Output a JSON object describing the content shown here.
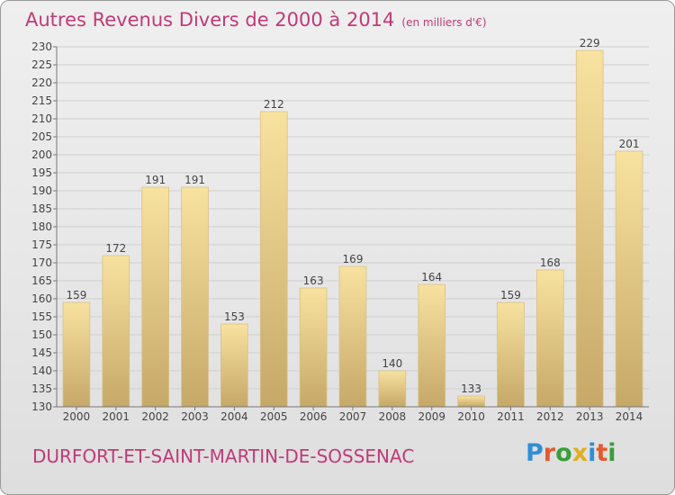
{
  "header": {
    "title": "Autres Revenus Divers de 2000 à 2014",
    "unit": "(en milliers d'€)"
  },
  "footer": {
    "commune": "DURFORT-ET-SAINT-MARTIN-DE-SOSSENAC",
    "logo": {
      "letters": [
        "P",
        "r",
        "o",
        "x",
        "i",
        "t",
        "i"
      ],
      "colors": [
        "#2f8fd6",
        "#e45a2e",
        "#3a9e3a",
        "#e0b022",
        "#2f8fd6",
        "#e45a2e",
        "#3a9e3a"
      ]
    }
  },
  "colors": {
    "accent": "#c03a78",
    "bar_light": "#f8e2a0",
    "bar_dark": "#c6a868",
    "grid": "#cfcfcf"
  },
  "chart_data": {
    "type": "bar",
    "title": "Autres Revenus Divers de 2000 à 2014",
    "subtitle": "(en milliers d'€)",
    "xlabel": "",
    "ylabel": "",
    "categories": [
      "2000",
      "2001",
      "2002",
      "2003",
      "2004",
      "2005",
      "2006",
      "2007",
      "2008",
      "2009",
      "2010",
      "2011",
      "2012",
      "2013",
      "2014"
    ],
    "values": [
      159,
      172,
      191,
      191,
      153,
      212,
      163,
      169,
      140,
      164,
      133,
      159,
      168,
      229,
      201
    ],
    "ylim": [
      130,
      230
    ],
    "yticks": [
      130,
      135,
      140,
      145,
      150,
      155,
      160,
      165,
      170,
      175,
      180,
      185,
      190,
      195,
      200,
      205,
      210,
      215,
      220,
      225,
      230
    ],
    "grid": true,
    "legend": "none"
  }
}
